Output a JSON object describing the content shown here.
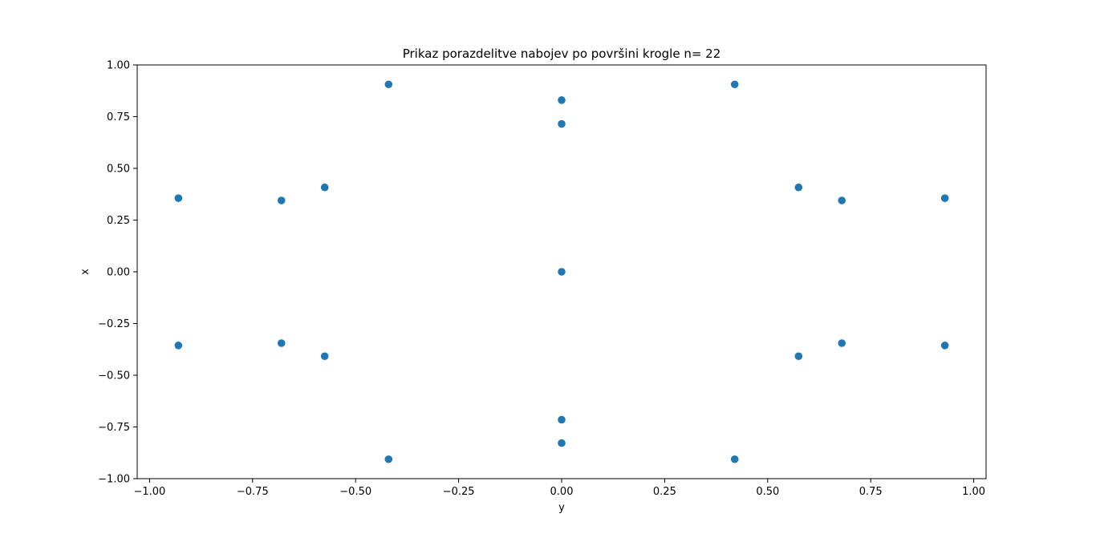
{
  "chart_data": {
    "type": "scatter",
    "title": "Prikaz porazdelitve nabojev po površini krogle n= 22",
    "xlabel": "y",
    "ylabel": "x",
    "xlim": [
      -1.03,
      1.03
    ],
    "ylim": [
      -1.0,
      1.0
    ],
    "xticks": [
      -1.0,
      -0.75,
      -0.5,
      -0.25,
      0.0,
      0.25,
      0.5,
      0.75,
      1.0
    ],
    "xtick_labels": [
      "−1.00",
      "−0.75",
      "−0.50",
      "−0.25",
      "0.00",
      "0.25",
      "0.50",
      "0.75",
      "1.00"
    ],
    "yticks": [
      1.0,
      0.75,
      0.5,
      0.25,
      0.0,
      -0.25,
      -0.5,
      -0.75,
      -1.0
    ],
    "ytick_labels": [
      "1.00",
      "0.75",
      "0.50",
      "0.25",
      "0.00",
      "−0.25",
      "−0.50",
      "−0.75",
      "−1.00"
    ],
    "grid": false,
    "marker_color": "#1f77b4",
    "points": [
      {
        "x": -0.93,
        "y": 0.356
      },
      {
        "x": -0.93,
        "y": -0.356
      },
      {
        "x": -0.68,
        "y": 0.345
      },
      {
        "x": -0.68,
        "y": -0.345
      },
      {
        "x": -0.575,
        "y": 0.408
      },
      {
        "x": -0.575,
        "y": -0.408
      },
      {
        "x": -0.42,
        "y": 0.906
      },
      {
        "x": -0.42,
        "y": -0.906
      },
      {
        "x": 0.0,
        "y": 0.83
      },
      {
        "x": 0.0,
        "y": 0.715
      },
      {
        "x": 0.0,
        "y": 0.0
      },
      {
        "x": 0.0,
        "y": -0.715
      },
      {
        "x": 0.0,
        "y": -0.828
      },
      {
        "x": 0.42,
        "y": 0.906
      },
      {
        "x": 0.42,
        "y": -0.906
      },
      {
        "x": 0.575,
        "y": 0.408
      },
      {
        "x": 0.575,
        "y": -0.408
      },
      {
        "x": 0.68,
        "y": 0.345
      },
      {
        "x": 0.68,
        "y": -0.345
      },
      {
        "x": 0.93,
        "y": 0.356
      },
      {
        "x": 0.93,
        "y": -0.356
      }
    ]
  }
}
